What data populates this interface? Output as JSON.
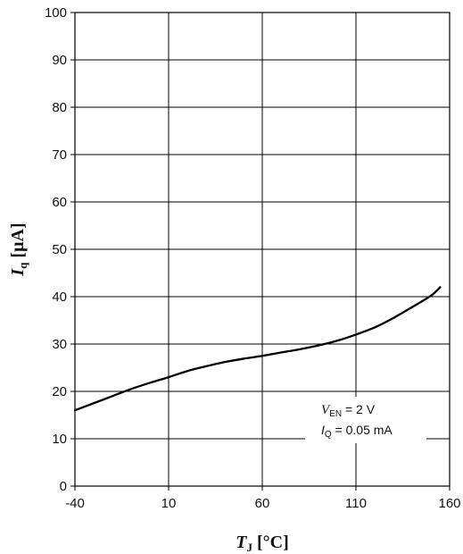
{
  "chart_data": {
    "type": "line",
    "xlabel": {
      "symbol": "T",
      "subscript": "J",
      "unit": " [°C]"
    },
    "ylabel": {
      "symbol": "I",
      "subscript": "q",
      "unit": " [µA]"
    },
    "xlim": [
      -40,
      160
    ],
    "ylim": [
      0,
      100
    ],
    "x_ticks": [
      -40,
      10,
      60,
      110,
      160
    ],
    "y_ticks": [
      0,
      10,
      20,
      30,
      40,
      50,
      60,
      70,
      80,
      90,
      100
    ],
    "grid": true,
    "series": [
      {
        "color": "#000000",
        "x": [
          -40,
          -30,
          -20,
          -10,
          0,
          10,
          20,
          30,
          40,
          50,
          60,
          70,
          80,
          90,
          100,
          110,
          120,
          130,
          140,
          150,
          155
        ],
        "y": [
          16.0,
          17.5,
          19.0,
          20.5,
          21.8,
          23.0,
          24.3,
          25.3,
          26.2,
          26.9,
          27.5,
          28.2,
          28.9,
          29.7,
          30.7,
          32.0,
          33.5,
          35.5,
          37.8,
          40.2,
          42.0
        ]
      }
    ],
    "annotation": {
      "line1": {
        "symbol": "V",
        "subscript": "EN",
        "text": " = 2 V"
      },
      "line2": {
        "symbol": "I",
        "subscript": "Q",
        "text": " = 0.05 mA"
      }
    }
  }
}
